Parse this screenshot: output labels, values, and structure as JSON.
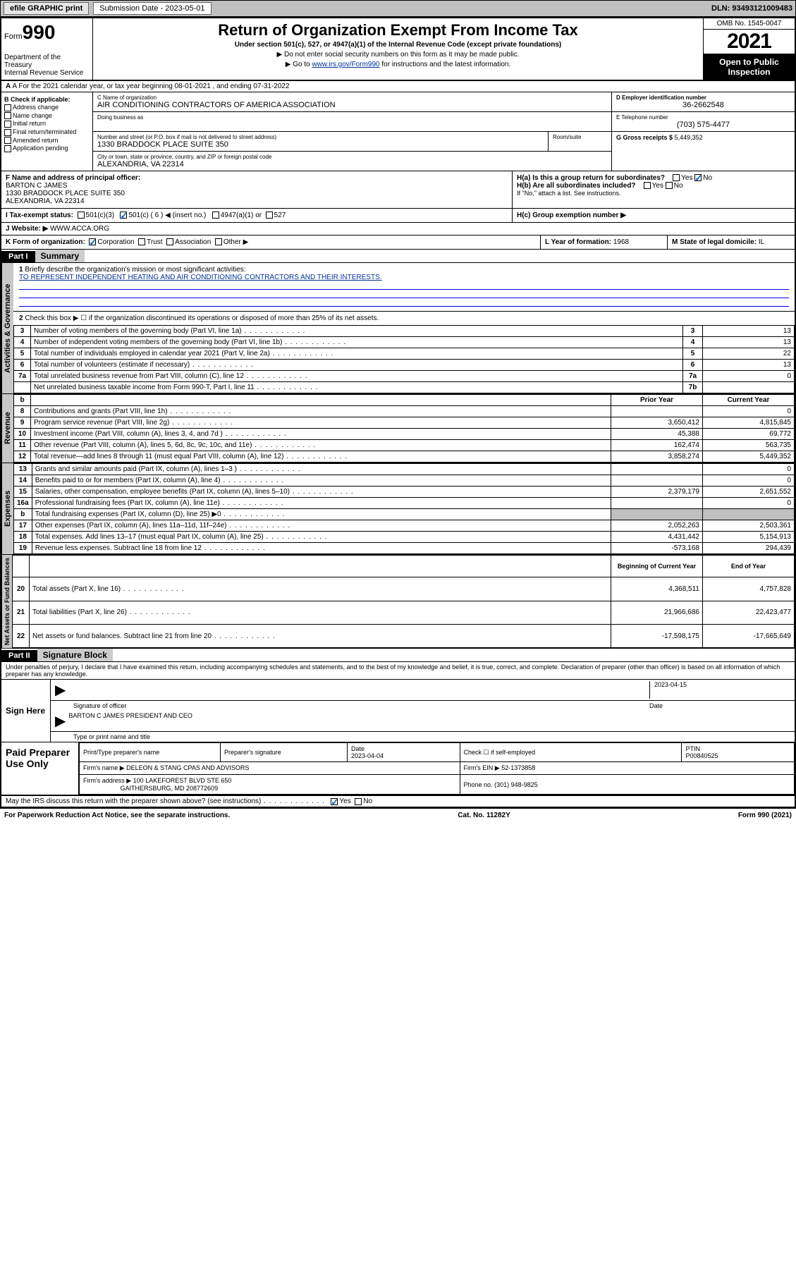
{
  "top": {
    "efile": "efile GRAPHIC print",
    "sub_label": "Submission Date - 2023-05-01",
    "dln": "DLN: 93493121009483"
  },
  "header": {
    "form_prefix": "Form",
    "form_no": "990",
    "title": "Return of Organization Exempt From Income Tax",
    "subtitle": "Under section 501(c), 527, or 4947(a)(1) of the Internal Revenue Code (except private foundations)",
    "note1": "▶ Do not enter social security numbers on this form as it may be made public.",
    "note2_pre": "▶ Go to ",
    "note2_link": "www.irs.gov/Form990",
    "note2_post": " for instructions and the latest information.",
    "dept": "Department of the Treasury\nInternal Revenue Service",
    "omb": "OMB No. 1545-0047",
    "year": "2021",
    "open": "Open to Public Inspection"
  },
  "line_a": "A For the 2021 calendar year, or tax year beginning 08-01-2021   , and ending 07-31-2022",
  "box_b": {
    "title": "B Check if applicable:",
    "opts": [
      "Address change",
      "Name change",
      "Initial return",
      "Final return/terminated",
      "Amended return",
      "Application pending"
    ]
  },
  "box_c": {
    "name_label": "C Name of organization",
    "name": "AIR CONDITIONING CONTRACTORS OF AMERICA ASSOCIATION",
    "dba_label": "Doing business as",
    "street_label": "Number and street (or P.O. box if mail is not delivered to street address)",
    "room_label": "Room/suite",
    "street": "1330 BRADDOCK PLACE SUITE 350",
    "city_label": "City or town, state or province, country, and ZIP or foreign postal code",
    "city": "ALEXANDRIA, VA  22314"
  },
  "box_d": {
    "label": "D Employer identification number",
    "val": "36-2662548"
  },
  "box_e": {
    "label": "E Telephone number",
    "val": "(703) 575-4477"
  },
  "box_g": {
    "label": "G Gross receipts $",
    "val": "5,449,352"
  },
  "box_f": {
    "label": "F  Name and address of principal officer:",
    "name": "BARTON C JAMES",
    "street": "1330 BRADDOCK PLACE SUITE 350",
    "city": "ALEXANDRIA, VA  22314"
  },
  "box_h": {
    "a": "H(a)  Is this a group return for subordinates?",
    "b": "H(b)  Are all subordinates included?",
    "b_note": "If \"No,\" attach a list. See instructions.",
    "c": "H(c)  Group exemption number ▶",
    "yes": "Yes",
    "no": "No"
  },
  "line_i": {
    "label": "I   Tax-exempt status:",
    "c3": "501(c)(3)",
    "c": "501(c) ( 6 ) ◀ (insert no.)",
    "a4947": "4947(a)(1) or",
    "c527": "527"
  },
  "line_j": {
    "label": "J   Website: ▶",
    "val": "WWW.ACCA.ORG"
  },
  "line_k": {
    "label": "K Form of organization:",
    "corp": "Corporation",
    "trust": "Trust",
    "assoc": "Association",
    "other": "Other ▶"
  },
  "line_l": {
    "label": "L Year of formation:",
    "val": "1968"
  },
  "line_m": {
    "label": "M State of legal domicile:",
    "val": "IL"
  },
  "part1": {
    "tag": "Part I",
    "title": "Summary"
  },
  "summary": {
    "q1": "Briefly describe the organization's mission or most significant activities:",
    "mission": "TO REPRESENT INDEPENDENT HEATING AND AIR CONDITIONING CONTRACTORS AND THEIR INTERESTS.",
    "q2": "Check this box ▶ ☐  if the organization discontinued its operations or disposed of more than 25% of its net assets.",
    "rows_a": [
      {
        "n": "3",
        "d": "Number of voting members of the governing body (Part VI, line 1a)",
        "box": "3",
        "v": "13"
      },
      {
        "n": "4",
        "d": "Number of independent voting members of the governing body (Part VI, line 1b)",
        "box": "4",
        "v": "13"
      },
      {
        "n": "5",
        "d": "Total number of individuals employed in calendar year 2021 (Part V, line 2a)",
        "box": "5",
        "v": "22"
      },
      {
        "n": "6",
        "d": "Total number of volunteers (estimate if necessary)",
        "box": "6",
        "v": "13"
      },
      {
        "n": "7a",
        "d": "Total unrelated business revenue from Part VIII, column (C), line 12",
        "box": "7a",
        "v": "0"
      },
      {
        "n": "",
        "d": "Net unrelated business taxable income from Form 990-T, Part I, line 11",
        "box": "7b",
        "v": ""
      }
    ],
    "col_hdr": {
      "b": "b",
      "py": "Prior Year",
      "cy": "Current Year"
    },
    "rows_rev": [
      {
        "n": "8",
        "d": "Contributions and grants (Part VIII, line 1h)",
        "py": "",
        "cy": "0"
      },
      {
        "n": "9",
        "d": "Program service revenue (Part VIII, line 2g)",
        "py": "3,650,412",
        "cy": "4,815,845"
      },
      {
        "n": "10",
        "d": "Investment income (Part VIII, column (A), lines 3, 4, and 7d )",
        "py": "45,388",
        "cy": "69,772"
      },
      {
        "n": "11",
        "d": "Other revenue (Part VIII, column (A), lines 5, 6d, 8c, 9c, 10c, and 11e)",
        "py": "162,474",
        "cy": "563,735"
      },
      {
        "n": "12",
        "d": "Total revenue—add lines 8 through 11 (must equal Part VIII, column (A), line 12)",
        "py": "3,858,274",
        "cy": "5,449,352"
      }
    ],
    "rows_exp": [
      {
        "n": "13",
        "d": "Grants and similar amounts paid (Part IX, column (A), lines 1–3 )",
        "py": "",
        "cy": "0"
      },
      {
        "n": "14",
        "d": "Benefits paid to or for members (Part IX, column (A), line 4)",
        "py": "",
        "cy": "0"
      },
      {
        "n": "15",
        "d": "Salaries, other compensation, employee benefits (Part IX, column (A), lines 5–10)",
        "py": "2,379,179",
        "cy": "2,651,552"
      },
      {
        "n": "16a",
        "d": "Professional fundraising fees (Part IX, column (A), line 11e)",
        "py": "",
        "cy": "0"
      },
      {
        "n": "b",
        "d": "Total fundraising expenses (Part IX, column (D), line 25) ▶0",
        "py": "GREY",
        "cy": "GREY"
      },
      {
        "n": "17",
        "d": "Other expenses (Part IX, column (A), lines 11a–11d, 11f–24e)",
        "py": "2,052,263",
        "cy": "2,503,361"
      },
      {
        "n": "18",
        "d": "Total expenses. Add lines 13–17 (must equal Part IX, column (A), line 25)",
        "py": "4,431,442",
        "cy": "5,154,913"
      },
      {
        "n": "19",
        "d": "Revenue less expenses. Subtract line 18 from line 12",
        "py": "-573,168",
        "cy": "294,439"
      }
    ],
    "col_hdr2": {
      "py": "Beginning of Current Year",
      "cy": "End of Year"
    },
    "rows_net": [
      {
        "n": "20",
        "d": "Total assets (Part X, line 16)",
        "py": "4,368,511",
        "cy": "4,757,828"
      },
      {
        "n": "21",
        "d": "Total liabilities (Part X, line 26)",
        "py": "21,966,686",
        "cy": "22,423,477"
      },
      {
        "n": "22",
        "d": "Net assets or fund balances. Subtract line 21 from line 20",
        "py": "-17,598,175",
        "cy": "-17,665,649"
      }
    ]
  },
  "vtabs": {
    "a": "Activities & Governance",
    "r": "Revenue",
    "e": "Expenses",
    "n": "Net Assets or Fund Balances"
  },
  "part2": {
    "tag": "Part II",
    "title": "Signature Block"
  },
  "sig": {
    "decl": "Under penalties of perjury, I declare that I have examined this return, including accompanying schedules and statements, and to the best of my knowledge and belief, it is true, correct, and complete. Declaration of preparer (other than officer) is based on all information of which preparer has any knowledge.",
    "here": "Sign Here",
    "date": "2023-04-15",
    "sig_label": "Signature of officer",
    "date_label": "Date",
    "name": "BARTON C JAMES  PRESIDENT AND CEO",
    "name_label": "Type or print name and title"
  },
  "paid": {
    "title": "Paid Preparer Use Only",
    "h1": "Print/Type preparer's name",
    "h2": "Preparer's signature",
    "h3": "Date",
    "h3v": "2023-04-04",
    "h4": "Check ☐ if self-employed",
    "h5": "PTIN",
    "h5v": "P00840525",
    "firm_label": "Firm's name    ▶",
    "firm": "DELEON & STANG CPAS AND ADVISORS",
    "ein_label": "Firm's EIN ▶",
    "ein": "52-1373858",
    "addr_label": "Firm's address ▶",
    "addr1": "100 LAKEFOREST BLVD STE 650",
    "addr2": "GAITHERSBURG, MD  208772609",
    "phone_label": "Phone no.",
    "phone": "(301) 948-9825"
  },
  "discuss": {
    "q": "May the IRS discuss this return with the preparer shown above? (see instructions)",
    "yes": "Yes",
    "no": "No"
  },
  "footer": {
    "l": "For Paperwork Reduction Act Notice, see the separate instructions.",
    "m": "Cat. No. 11282Y",
    "r": "Form 990 (2021)"
  }
}
